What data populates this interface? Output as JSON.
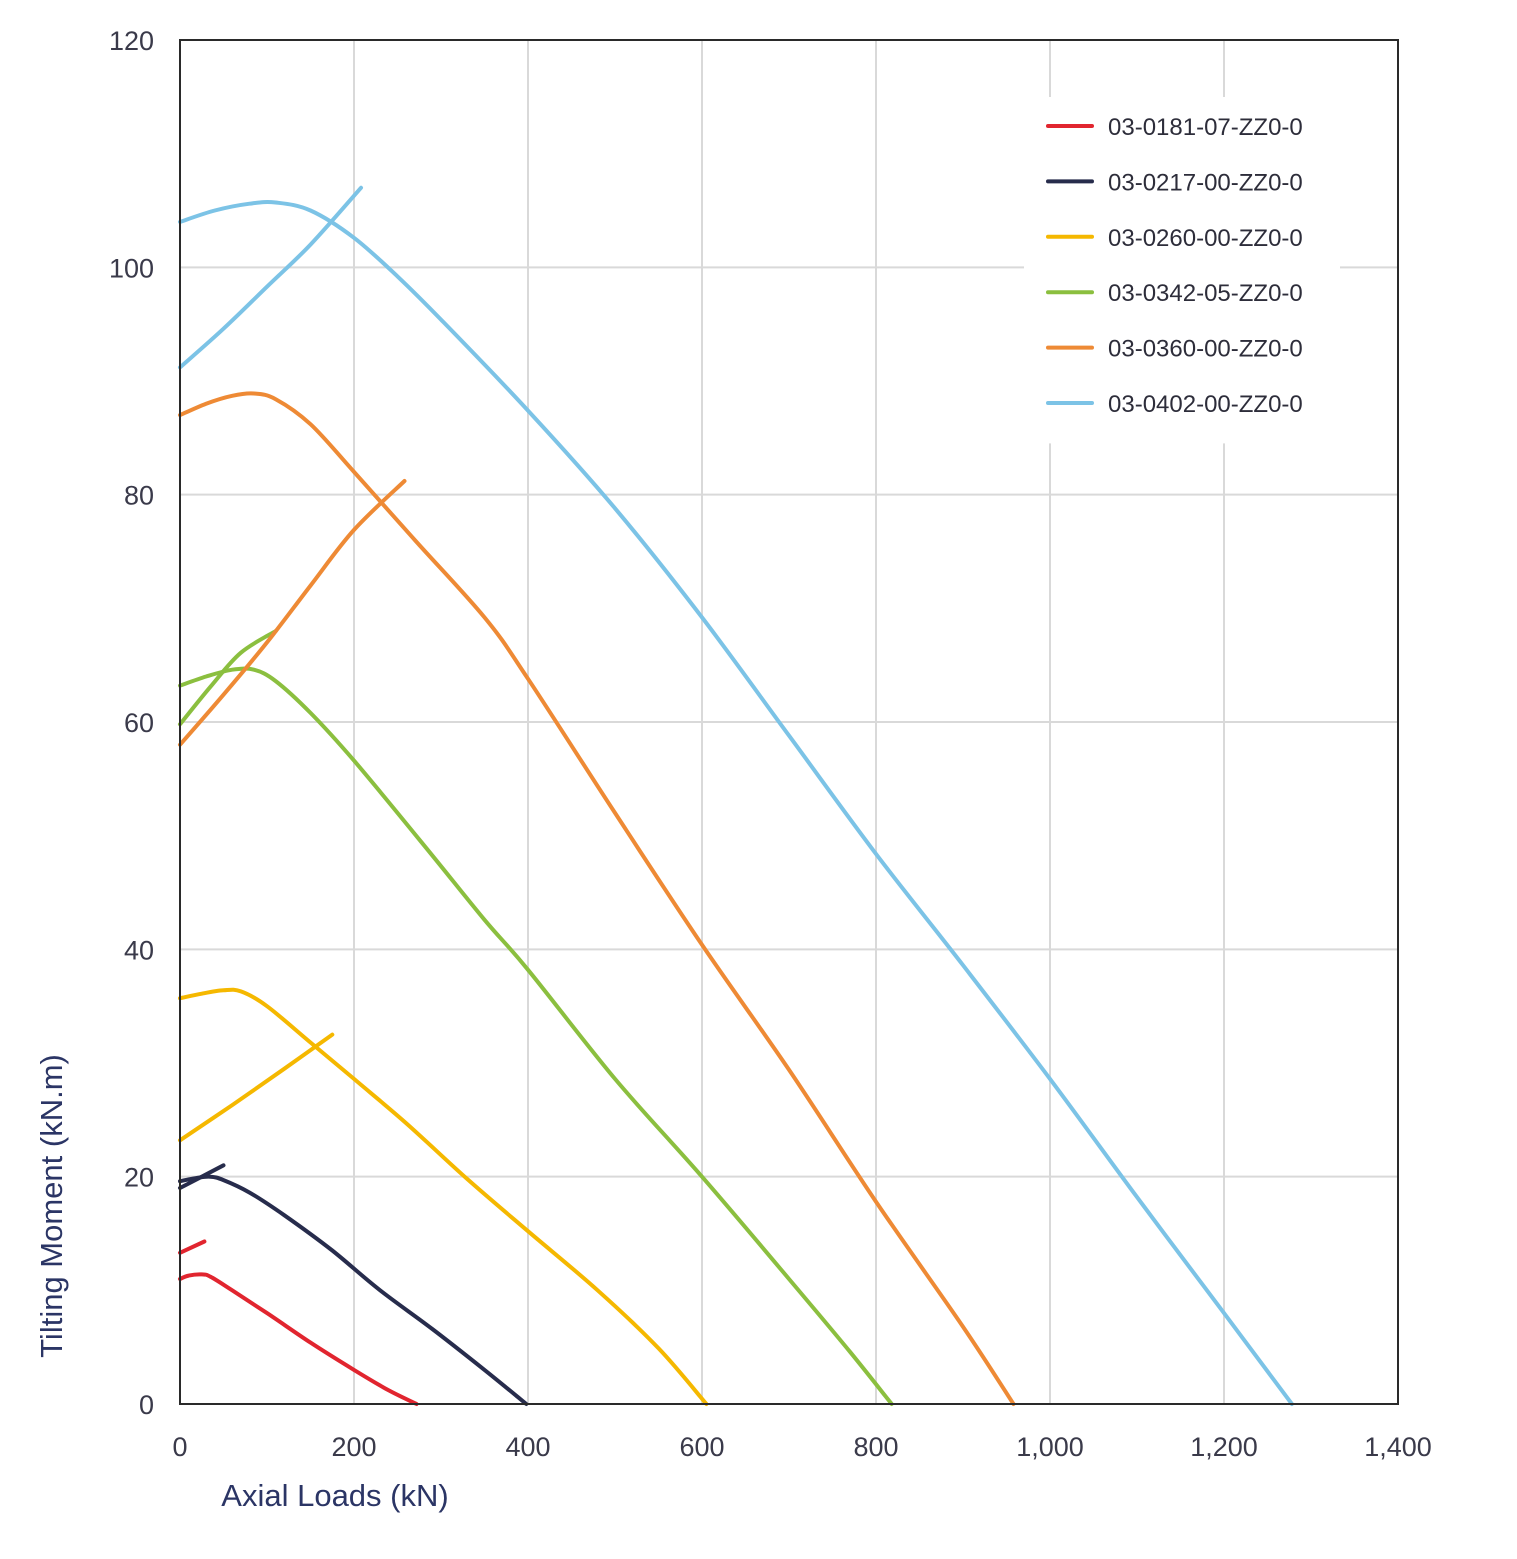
{
  "chart_data": {
    "type": "line",
    "xlabel": "Axial Loads (kN)",
    "ylabel": "Tilting Moment (kN.m)",
    "xlim": [
      0,
      1400
    ],
    "ylim": [
      0,
      120
    ],
    "xticks": [
      0,
      200,
      400,
      600,
      800,
      1000,
      1200,
      1400
    ],
    "xtick_labels": [
      "0",
      "200",
      "400",
      "600",
      "800",
      "1,000",
      "1,200",
      "1,400"
    ],
    "yticks": [
      0,
      20,
      40,
      60,
      80,
      100,
      120
    ],
    "ytick_labels": [
      "0",
      "20",
      "40",
      "60",
      "80",
      "100",
      "120"
    ],
    "grid": true,
    "legend_position": "top-right",
    "series": [
      {
        "name": "03-0181-07-ZZ0-0",
        "color": "#e1252f",
        "curves": [
          [
            [
              0,
              13.3
            ],
            [
              28,
              14.3
            ]
          ],
          [
            [
              0,
              11.0
            ],
            [
              10,
              11.3
            ],
            [
              25,
              11.4
            ],
            [
              35,
              11.2
            ],
            [
              60,
              10.0
            ],
            [
              100,
              8.0
            ],
            [
              150,
              5.4
            ],
            [
              200,
              3.0
            ],
            [
              240,
              1.2
            ],
            [
              272,
              0
            ]
          ]
        ]
      },
      {
        "name": "03-0217-00-ZZ0-0",
        "color": "#272c4c",
        "curves": [
          [
            [
              0,
              19.0
            ],
            [
              25,
              20.0
            ],
            [
              50,
              21.0
            ]
          ],
          [
            [
              0,
              19.6
            ],
            [
              20,
              19.9
            ],
            [
              35,
              20.0
            ],
            [
              50,
              19.7
            ],
            [
              80,
              18.6
            ],
            [
              120,
              16.6
            ],
            [
              175,
              13.5
            ],
            [
              230,
              10.0
            ],
            [
              290,
              6.6
            ],
            [
              350,
              3.0
            ],
            [
              398,
              0
            ]
          ]
        ]
      },
      {
        "name": "03-0260-00-ZZ0-0",
        "color": "#f5b800",
        "curves": [
          [
            [
              0,
              23.2
            ],
            [
              60,
              26.3
            ],
            [
              120,
              29.5
            ],
            [
              175,
              32.5
            ]
          ],
          [
            [
              0,
              35.7
            ],
            [
              25,
              36.1
            ],
            [
              50,
              36.4
            ],
            [
              70,
              36.3
            ],
            [
              100,
              35.0
            ],
            [
              150,
              31.8
            ],
            [
              200,
              28.6
            ],
            [
              260,
              24.7
            ],
            [
              330,
              19.8
            ],
            [
              400,
              15.2
            ],
            [
              480,
              10.0
            ],
            [
              550,
              4.9
            ],
            [
              605,
              0
            ]
          ]
        ]
      },
      {
        "name": "03-0342-05-ZZ0-0",
        "color": "#8bbf3f",
        "curves": [
          [
            [
              0,
              59.8
            ],
            [
              35,
              63.1
            ],
            [
              70,
              66.1
            ],
            [
              110,
              68.0
            ]
          ],
          [
            [
              0,
              63.2
            ],
            [
              30,
              64.0
            ],
            [
              60,
              64.6
            ],
            [
              85,
              64.6
            ],
            [
              110,
              63.6
            ],
            [
              150,
              60.8
            ],
            [
              200,
              56.6
            ],
            [
              280,
              49.2
            ],
            [
              350,
              42.6
            ],
            [
              400,
              38.2
            ],
            [
              500,
              28.6
            ],
            [
              600,
              20.0
            ],
            [
              700,
              11.0
            ],
            [
              770,
              4.6
            ],
            [
              818,
              0
            ]
          ]
        ]
      },
      {
        "name": "03-0360-00-ZZ0-0",
        "color": "#ee8a35",
        "curves": [
          [
            [
              0,
              58.0
            ],
            [
              50,
              62.4
            ],
            [
              100,
              67.0
            ],
            [
              150,
              72.0
            ],
            [
              200,
              76.9
            ],
            [
              258,
              81.2
            ]
          ],
          [
            [
              0,
              87.0
            ],
            [
              30,
              88.0
            ],
            [
              60,
              88.7
            ],
            [
              85,
              88.9
            ],
            [
              110,
              88.4
            ],
            [
              150,
              86.2
            ],
            [
              200,
              82.0
            ],
            [
              270,
              76.0
            ],
            [
              350,
              69.2
            ],
            [
              400,
              63.8
            ],
            [
              500,
              52.0
            ],
            [
              600,
              40.4
            ],
            [
              700,
              29.4
            ],
            [
              800,
              17.8
            ],
            [
              900,
              6.8
            ],
            [
              958,
              0
            ]
          ]
        ]
      },
      {
        "name": "03-0402-00-ZZ0-0",
        "color": "#7cc3e6",
        "curves": [
          [
            [
              0,
              91.2
            ],
            [
              50,
              94.6
            ],
            [
              100,
              98.3
            ],
            [
              150,
              102.0
            ],
            [
              208,
              107.0
            ]
          ],
          [
            [
              0,
              104.0
            ],
            [
              40,
              105.0
            ],
            [
              80,
              105.6
            ],
            [
              110,
              105.7
            ],
            [
              150,
              105.0
            ],
            [
              200,
              102.6
            ],
            [
              250,
              99.2
            ],
            [
              300,
              95.4
            ],
            [
              400,
              87.4
            ],
            [
              500,
              78.8
            ],
            [
              600,
              69.2
            ],
            [
              700,
              58.8
            ],
            [
              800,
              48.4
            ],
            [
              900,
              38.6
            ],
            [
              1000,
              28.6
            ],
            [
              1100,
              18.2
            ],
            [
              1200,
              8.0
            ],
            [
              1278,
              0
            ]
          ]
        ]
      }
    ]
  }
}
